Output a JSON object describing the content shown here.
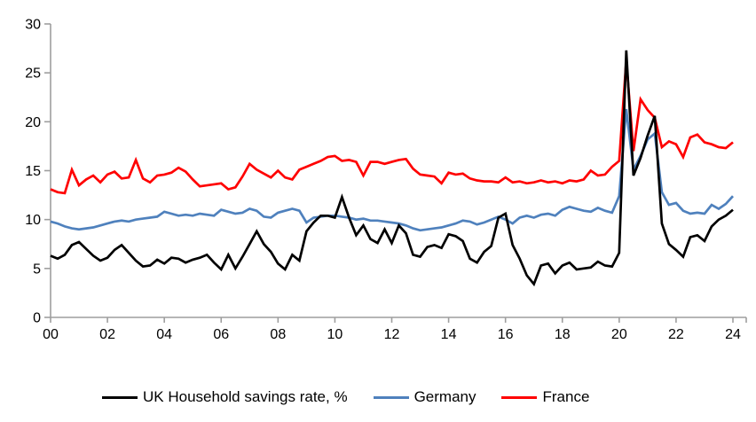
{
  "chart_data": {
    "type": "line",
    "title": "",
    "xlabel": "",
    "ylabel": "",
    "ylim": [
      0,
      30
    ],
    "y_ticks": [
      0,
      5,
      10,
      15,
      20,
      25,
      30
    ],
    "x_tick_labels": [
      "00",
      "02",
      "04",
      "06",
      "08",
      "10",
      "12",
      "14",
      "16",
      "18",
      "20",
      "22",
      "24"
    ],
    "grid": false,
    "legend_position": "bottom",
    "axis_color": "#9e9e9e",
    "sampling": {
      "start": "2000 Q1",
      "end": "2024 Q1",
      "frequency": "quarterly",
      "points_per_series": 97
    },
    "series": [
      {
        "name": "UK Household savings rate, %",
        "color": "#000000",
        "values": [
          6.3,
          6.0,
          6.4,
          7.4,
          7.7,
          7.0,
          6.3,
          5.8,
          6.1,
          6.9,
          7.4,
          6.6,
          5.8,
          5.2,
          5.3,
          5.9,
          5.5,
          6.1,
          6.0,
          5.6,
          5.9,
          6.1,
          6.4,
          5.6,
          4.9,
          6.4,
          5.0,
          6.2,
          7.5,
          8.8,
          7.5,
          6.7,
          5.5,
          4.9,
          6.4,
          5.8,
          8.8,
          9.7,
          10.4,
          10.4,
          10.2,
          12.3,
          10.2,
          8.4,
          9.4,
          8.0,
          7.6,
          9.0,
          7.6,
          9.4,
          8.6,
          6.4,
          6.2,
          7.2,
          7.4,
          7.1,
          8.5,
          8.3,
          7.8,
          6.0,
          5.6,
          6.7,
          7.3,
          10.2,
          10.6,
          7.4,
          6.0,
          4.3,
          3.4,
          5.3,
          5.5,
          4.5,
          5.3,
          5.6,
          4.9,
          5.0,
          5.1,
          5.7,
          5.3,
          5.2,
          6.6,
          27.3,
          14.5,
          16.3,
          18.6,
          20.6,
          9.6,
          7.5,
          6.9,
          6.2,
          8.2,
          8.4,
          7.8,
          9.3,
          10.0,
          10.4,
          11.0
        ]
      },
      {
        "name": "Germany",
        "color": "#4f81bd",
        "values": [
          9.8,
          9.6,
          9.3,
          9.1,
          9.0,
          9.1,
          9.2,
          9.4,
          9.6,
          9.8,
          9.9,
          9.8,
          10.0,
          10.1,
          10.2,
          10.3,
          10.8,
          10.6,
          10.4,
          10.5,
          10.4,
          10.6,
          10.5,
          10.4,
          11.0,
          10.8,
          10.6,
          10.7,
          11.1,
          10.9,
          10.3,
          10.2,
          10.7,
          10.9,
          11.1,
          10.9,
          9.7,
          10.2,
          10.3,
          10.4,
          10.4,
          10.3,
          10.2,
          10.0,
          10.1,
          9.9,
          9.9,
          9.8,
          9.7,
          9.6,
          9.4,
          9.1,
          8.9,
          9.0,
          9.1,
          9.2,
          9.4,
          9.6,
          9.9,
          9.8,
          9.5,
          9.7,
          10.0,
          10.3,
          10.0,
          9.6,
          10.2,
          10.4,
          10.2,
          10.5,
          10.6,
          10.4,
          11.0,
          11.3,
          11.1,
          10.9,
          10.8,
          11.2,
          10.9,
          10.7,
          12.4,
          21.3,
          15.1,
          16.5,
          18.2,
          18.8,
          12.8,
          11.5,
          11.7,
          10.9,
          10.6,
          10.7,
          10.6,
          11.5,
          11.1,
          11.6,
          12.4
        ]
      },
      {
        "name": "France",
        "color": "#ff0000",
        "values": [
          13.1,
          12.8,
          12.7,
          15.1,
          13.5,
          14.1,
          14.5,
          13.8,
          14.6,
          14.9,
          14.2,
          14.3,
          16.1,
          14.2,
          13.8,
          14.5,
          14.6,
          14.8,
          15.3,
          14.9,
          14.1,
          13.4,
          13.5,
          13.6,
          13.7,
          13.1,
          13.3,
          14.4,
          15.7,
          15.1,
          14.7,
          14.3,
          15.0,
          14.3,
          14.1,
          15.1,
          15.4,
          15.7,
          16.0,
          16.4,
          16.5,
          16.0,
          16.1,
          15.9,
          14.5,
          15.9,
          15.9,
          15.7,
          15.9,
          16.1,
          16.2,
          15.2,
          14.6,
          14.5,
          14.4,
          13.7,
          14.8,
          14.6,
          14.7,
          14.2,
          14.0,
          13.9,
          13.9,
          13.8,
          14.3,
          13.8,
          13.9,
          13.7,
          13.8,
          14.0,
          13.8,
          13.9,
          13.7,
          14.0,
          13.9,
          14.1,
          15.0,
          14.5,
          14.6,
          15.4,
          16.0,
          26.3,
          17.0,
          22.3,
          21.2,
          20.4,
          17.4,
          18.0,
          17.7,
          16.4,
          18.4,
          18.7,
          17.9,
          17.7,
          17.4,
          17.3,
          17.9
        ]
      }
    ]
  },
  "legend": {
    "uk_label": "UK Household savings rate, %",
    "germany_label": "Germany",
    "france_label": "France"
  }
}
